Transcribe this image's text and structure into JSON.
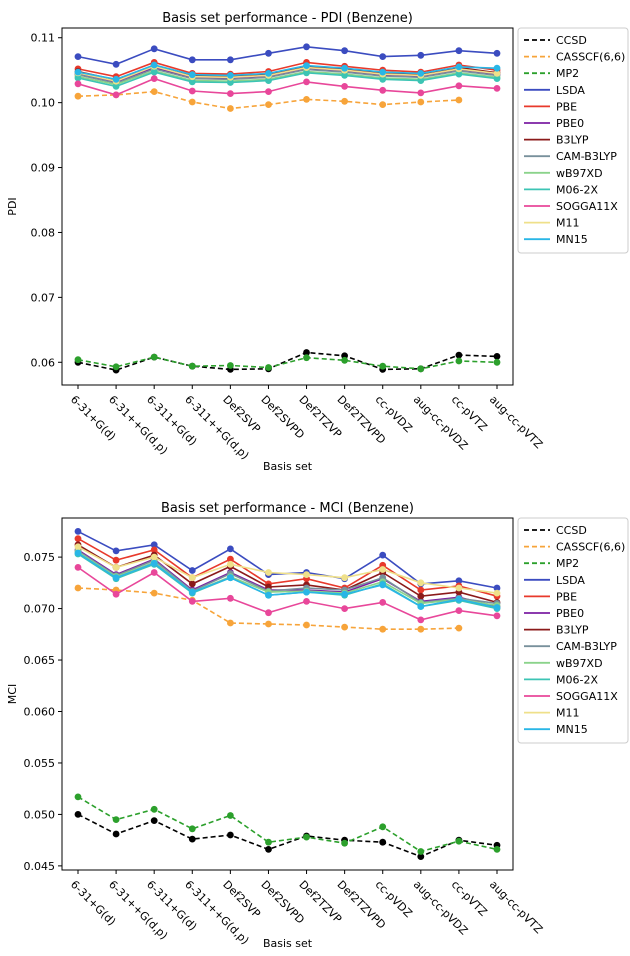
{
  "chart_data": [
    {
      "type": "line",
      "title": "Basis set performance - PDI (Benzene)",
      "xlabel": "Basis set",
      "ylabel": "PDI",
      "ylim": [
        0.0565,
        0.1115
      ],
      "yticks": [
        0.06,
        0.07,
        0.08,
        0.09,
        0.1,
        0.11
      ],
      "ytick_labels": [
        "0.06",
        "0.07",
        "0.08",
        "0.09",
        "0.10",
        "0.11"
      ],
      "legend_position": "outside-right",
      "grid": false,
      "categories": [
        "6-31+G(d)",
        "6-31++G(d,p)",
        "6-311+G(d)",
        "6-311++G(d,p)",
        "Def2SVP",
        "Def2SVPD",
        "Def2TZVP",
        "Def2TZVPD",
        "cc-pVDZ",
        "aug-cc-pVDZ",
        "cc-pVTZ",
        "aug-cc-pVTZ"
      ],
      "series": [
        {
          "name": "CCSD",
          "color": "#000000",
          "dashed": true,
          "marker_color": "#000000",
          "values": [
            0.06,
            0.0588,
            0.0608,
            0.0594,
            0.0589,
            0.059,
            0.0615,
            0.061,
            0.0589,
            0.059,
            0.0611,
            0.0609
          ]
        },
        {
          "name": "CASSCF(6,6)",
          "color": "#f7a43a",
          "dashed": true,
          "marker_color": "#f7a43a",
          "values": [
            0.101,
            0.1012,
            0.1017,
            0.1001,
            0.0991,
            0.0997,
            0.1005,
            0.1002,
            0.0997,
            0.1001,
            0.1004,
            null
          ]
        },
        {
          "name": "MP2",
          "color": "#2ca02c",
          "dashed": true,
          "marker_color": "#2ca02c",
          "values": [
            0.0604,
            0.0593,
            0.0608,
            0.0594,
            0.0595,
            0.0592,
            0.0607,
            0.0603,
            0.0594,
            0.059,
            0.0602,
            0.06
          ]
        },
        {
          "name": "LSDA",
          "color": "#3b4cc0",
          "dashed": false,
          "marker_color": "#3b4cc0",
          "values": [
            0.1071,
            0.1059,
            0.1083,
            0.1066,
            0.1066,
            0.1076,
            0.1086,
            0.108,
            0.1071,
            0.1073,
            0.108,
            0.1076
          ]
        },
        {
          "name": "PBE",
          "color": "#e8392b",
          "dashed": false,
          "marker_color": "#e8392b",
          "values": [
            0.1052,
            0.104,
            0.1062,
            0.1045,
            0.1044,
            0.1048,
            0.1062,
            0.1056,
            0.105,
            0.1047,
            0.1058,
            0.105
          ]
        },
        {
          "name": "PBE0",
          "color": "#7b1fa2",
          "dashed": false,
          "marker_color": "#7b1fa2",
          "values": [
            0.1045,
            0.1032,
            0.1054,
            0.1039,
            0.1038,
            0.1041,
            0.1053,
            0.1049,
            0.1043,
            0.1041,
            0.1051,
            0.1044
          ]
        },
        {
          "name": "B3LYP",
          "color": "#8b1a1a",
          "dashed": false,
          "marker_color": "#8b1a1a",
          "values": [
            0.1048,
            0.1035,
            0.1057,
            0.1042,
            0.1041,
            0.1044,
            0.1056,
            0.1052,
            0.1046,
            0.1044,
            0.1054,
            0.1046
          ]
        },
        {
          "name": "CAM-B3LYP",
          "color": "#78909c",
          "dashed": false,
          "marker_color": "#78909c",
          "values": [
            0.1043,
            0.103,
            0.1052,
            0.1037,
            0.1036,
            0.1039,
            0.1051,
            0.1047,
            0.1041,
            0.1039,
            0.1049,
            0.1042
          ]
        },
        {
          "name": "wB97XD",
          "color": "#8bd38b",
          "dashed": false,
          "marker_color": "#8bd38b",
          "values": [
            0.104,
            0.1028,
            0.1049,
            0.1034,
            0.1033,
            0.1036,
            0.1048,
            0.1044,
            0.1038,
            0.1036,
            0.1046,
            0.1039
          ]
        },
        {
          "name": "M06-2X",
          "color": "#3cc4b4",
          "dashed": false,
          "marker_color": "#3cc4b4",
          "values": [
            0.1038,
            0.1025,
            0.1047,
            0.1032,
            0.1031,
            0.1034,
            0.1046,
            0.1042,
            0.1036,
            0.1034,
            0.1044,
            0.1037
          ]
        },
        {
          "name": "SOGGA11X",
          "color": "#e8479a",
          "dashed": false,
          "marker_color": "#e8479a",
          "values": [
            0.1029,
            0.1012,
            0.1037,
            0.1018,
            0.1014,
            0.1017,
            0.1032,
            0.1025,
            0.1019,
            0.1015,
            0.1026,
            0.1022
          ]
        },
        {
          "name": "M11",
          "color": "#efe08a",
          "dashed": false,
          "marker_color": "#efe08a",
          "values": [
            0.1046,
            0.1033,
            0.1056,
            0.104,
            0.1039,
            0.1042,
            0.1054,
            0.105,
            0.1044,
            0.1042,
            0.1052,
            0.1045
          ]
        },
        {
          "name": "MN15",
          "color": "#29b6e6",
          "dashed": false,
          "marker_color": "#29b6e6",
          "values": [
            0.1047,
            0.1036,
            0.1058,
            0.1043,
            0.1042,
            0.1045,
            0.1057,
            0.1053,
            0.1047,
            0.1045,
            0.1055,
            0.1053
          ]
        }
      ]
    },
    {
      "type": "line",
      "title": "Basis set performance - MCI (Benzene)",
      "xlabel": "Basis set",
      "ylabel": "MCI",
      "ylim": [
        0.0446,
        0.0788
      ],
      "yticks": [
        0.045,
        0.05,
        0.055,
        0.06,
        0.065,
        0.07,
        0.075
      ],
      "ytick_labels": [
        "0.045",
        "0.050",
        "0.055",
        "0.060",
        "0.065",
        "0.070",
        "0.075"
      ],
      "legend_position": "outside-right",
      "grid": false,
      "categories": [
        "6-31+G(d)",
        "6-31++G(d,p)",
        "6-311+G(d)",
        "6-311++G(d,p)",
        "Def2SVP",
        "Def2SVPD",
        "Def2TZVP",
        "Def2TZVPD",
        "cc-pVDZ",
        "aug-cc-pVDZ",
        "cc-pVTZ",
        "aug-cc-pVTZ"
      ],
      "series": [
        {
          "name": "CCSD",
          "color": "#000000",
          "dashed": true,
          "marker_color": "#000000",
          "values": [
            0.05,
            0.0481,
            0.0494,
            0.0476,
            0.048,
            0.0466,
            0.0479,
            0.0475,
            0.0473,
            0.0459,
            0.0475,
            0.047
          ]
        },
        {
          "name": "CASSCF(6,6)",
          "color": "#f7a43a",
          "dashed": true,
          "marker_color": "#f7a43a",
          "values": [
            0.072,
            0.0718,
            0.0715,
            0.0708,
            0.0686,
            0.0685,
            0.0684,
            0.0682,
            0.068,
            0.068,
            0.0681,
            null
          ]
        },
        {
          "name": "MP2",
          "color": "#2ca02c",
          "dashed": true,
          "marker_color": "#2ca02c",
          "values": [
            0.0517,
            0.0495,
            0.0505,
            0.0486,
            0.0499,
            0.0473,
            0.0478,
            0.0472,
            0.0488,
            0.0464,
            0.0474,
            0.0466
          ]
        },
        {
          "name": "LSDA",
          "color": "#3b4cc0",
          "dashed": false,
          "marker_color": "#3b4cc0",
          "values": [
            0.0775,
            0.0756,
            0.0762,
            0.0737,
            0.0758,
            0.0733,
            0.0735,
            0.0729,
            0.0752,
            0.0724,
            0.0727,
            0.072
          ]
        },
        {
          "name": "PBE",
          "color": "#e8392b",
          "dashed": false,
          "marker_color": "#e8392b",
          "values": [
            0.0768,
            0.0747,
            0.0757,
            0.073,
            0.0748,
            0.0724,
            0.0729,
            0.072,
            0.0742,
            0.0718,
            0.0722,
            0.0712
          ]
        },
        {
          "name": "PBE0",
          "color": "#7b1fa2",
          "dashed": false,
          "marker_color": "#7b1fa2",
          "values": [
            0.0757,
            0.0733,
            0.0748,
            0.0718,
            0.0735,
            0.0718,
            0.0718,
            0.0716,
            0.0729,
            0.0707,
            0.0711,
            0.0702
          ]
        },
        {
          "name": "B3LYP",
          "color": "#8b1a1a",
          "dashed": false,
          "marker_color": "#8b1a1a",
          "values": [
            0.0762,
            0.074,
            0.0752,
            0.0724,
            0.0741,
            0.0721,
            0.0723,
            0.0718,
            0.0735,
            0.0712,
            0.0716,
            0.0706
          ]
        },
        {
          "name": "CAM-B3LYP",
          "color": "#78909c",
          "dashed": false,
          "marker_color": "#78909c",
          "values": [
            0.0756,
            0.0732,
            0.0747,
            0.0717,
            0.0734,
            0.0717,
            0.072,
            0.0718,
            0.073,
            0.0706,
            0.071,
            0.0705
          ]
        },
        {
          "name": "wB97XD",
          "color": "#8bd38b",
          "dashed": false,
          "marker_color": "#8bd38b",
          "values": [
            0.0755,
            0.0731,
            0.0745,
            0.0716,
            0.0731,
            0.0716,
            0.0717,
            0.0715,
            0.0726,
            0.0705,
            0.0709,
            0.0703
          ]
        },
        {
          "name": "M06-2X",
          "color": "#3cc4b4",
          "dashed": false,
          "marker_color": "#3cc4b4",
          "values": [
            0.0753,
            0.0729,
            0.0743,
            0.0715,
            0.073,
            0.0713,
            0.0716,
            0.0713,
            0.0724,
            0.0702,
            0.0708,
            0.07
          ]
        },
        {
          "name": "SOGGA11X",
          "color": "#e8479a",
          "dashed": false,
          "marker_color": "#e8479a",
          "values": [
            0.074,
            0.0714,
            0.0735,
            0.0707,
            0.071,
            0.0696,
            0.0707,
            0.07,
            0.0706,
            0.0689,
            0.0698,
            0.0693
          ]
        },
        {
          "name": "M11",
          "color": "#efe08a",
          "dashed": false,
          "marker_color": "#efe08a",
          "values": [
            0.076,
            0.074,
            0.075,
            0.073,
            0.0743,
            0.0735,
            0.0733,
            0.073,
            0.0738,
            0.0725,
            0.072,
            0.0715
          ]
        },
        {
          "name": "MN15",
          "color": "#29b6e6",
          "dashed": false,
          "marker_color": "#29b6e6",
          "values": [
            0.0754,
            0.073,
            0.0744,
            0.0716,
            0.073,
            0.0713,
            0.0716,
            0.0714,
            0.0723,
            0.0702,
            0.0709,
            0.0701
          ]
        }
      ]
    }
  ]
}
